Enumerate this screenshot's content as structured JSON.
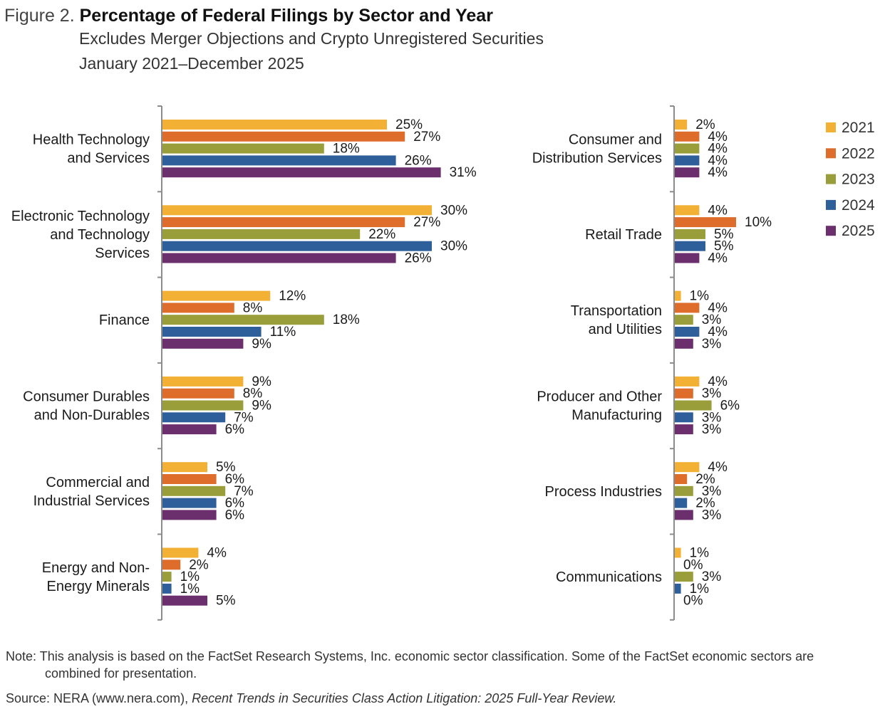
{
  "header": {
    "figure_label": "Figure 2.",
    "title": "Percentage of Federal Filings by Sector and Year",
    "subtitle1": "Excludes Merger Objections and Crypto Unregistered Securities",
    "subtitle2": "January 2021–December 2025"
  },
  "notes": {
    "note_line1": "Note: This analysis is based on the FactSet Research Systems, Inc. economic sector classification. Some of the FactSet economic sectors are",
    "note_line2": "combined for presentation.",
    "source_prefix": "Source: NERA (www.nera.com), ",
    "source_title": "Recent Trends in Securities Class Action Litigation: 2025 Full-Year Review."
  },
  "chart_data": {
    "type": "bar",
    "orientation": "horizontal",
    "title": "Percentage of Federal Filings by Sector and Year",
    "value_suffix": "%",
    "series_names": [
      "2021",
      "2022",
      "2023",
      "2024",
      "2025"
    ],
    "colors": [
      "#F2B035",
      "#DE6D2B",
      "#9A9E3A",
      "#2F5F9A",
      "#6B2F6E"
    ],
    "legend_position": "top-right",
    "panels": [
      {
        "xlim": [
          0,
          32
        ],
        "categories": [
          {
            "label": [
              "Health Technology",
              "and Services"
            ],
            "values": [
              25,
              27,
              18,
              26,
              31
            ]
          },
          {
            "label": [
              "Electronic Technology",
              "and Technology",
              "Services"
            ],
            "values": [
              30,
              27,
              22,
              30,
              26
            ]
          },
          {
            "label": [
              "Finance"
            ],
            "values": [
              12,
              8,
              18,
              11,
              9
            ]
          },
          {
            "label": [
              "Consumer Durables",
              "and Non-Durables"
            ],
            "values": [
              9,
              8,
              9,
              7,
              6
            ]
          },
          {
            "label": [
              "Commercial and",
              "Industrial Services"
            ],
            "values": [
              5,
              6,
              7,
              6,
              6
            ]
          },
          {
            "label": [
              "Energy and Non-",
              "Energy Minerals"
            ],
            "values": [
              4,
              2,
              1,
              1,
              5
            ]
          }
        ]
      },
      {
        "xlim": [
          0,
          32
        ],
        "categories": [
          {
            "label": [
              "Consumer and",
              "Distribution Services"
            ],
            "values": [
              2,
              4,
              4,
              4,
              4
            ]
          },
          {
            "label": [
              "Retail Trade"
            ],
            "values": [
              4,
              10,
              5,
              5,
              4
            ]
          },
          {
            "label": [
              "Transportation",
              "and Utilities"
            ],
            "values": [
              1,
              4,
              3,
              4,
              3
            ]
          },
          {
            "label": [
              "Producer and Other",
              "Manufacturing"
            ],
            "values": [
              4,
              3,
              6,
              3,
              3
            ]
          },
          {
            "label": [
              "Process Industries"
            ],
            "values": [
              4,
              2,
              3,
              2,
              3
            ]
          },
          {
            "label": [
              "Communications"
            ],
            "values": [
              1,
              0,
              3,
              1,
              0
            ]
          }
        ]
      }
    ]
  }
}
